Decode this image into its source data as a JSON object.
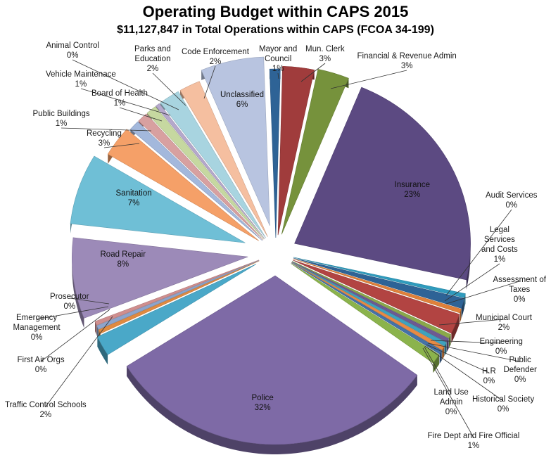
{
  "chart_data": {
    "type": "pie",
    "title": "Operating Budget within CAPS 2015",
    "subtitle": "$11,127,847 in Total Operations within CAPS (FCOA 34-199)",
    "slices": [
      {
        "name": "Mayor and Council",
        "value": 1,
        "pct": "1%",
        "color": "#2e6396"
      },
      {
        "name": "Mun. Clerk",
        "value": 3,
        "pct": "3%",
        "color": "#a03c3c"
      },
      {
        "name": "Financial & Revenue Admin",
        "value": 3,
        "pct": "3%",
        "color": "#76923c"
      },
      {
        "name": "Insurance",
        "value": 23,
        "pct": "23%",
        "color": "#5c4a82"
      },
      {
        "name": "Audit Services",
        "value": 0.4,
        "pct": "0%",
        "color": "#2f9bbd"
      },
      {
        "name": "Legal Services and Costs",
        "value": 1,
        "pct": "1%",
        "color": "#2e6396"
      },
      {
        "name": "Assessment of Taxes",
        "value": 0.4,
        "pct": "0%",
        "color": "#e0803a"
      },
      {
        "name": "Municipal Court",
        "value": 2,
        "pct": "2%",
        "color": "#b24442"
      },
      {
        "name": "Engineering",
        "value": 0.4,
        "pct": "0%",
        "color": "#8aa84a"
      },
      {
        "name": "Public Defender",
        "value": 0.4,
        "pct": "0%",
        "color": "#6d5a93"
      },
      {
        "name": "H.R",
        "value": 0.4,
        "pct": "0%",
        "color": "#3ea2bf"
      },
      {
        "name": "Historical Society",
        "value": 0.4,
        "pct": "0%",
        "color": "#e88a44"
      },
      {
        "name": "Land Use Admin",
        "value": 0.4,
        "pct": "0%",
        "color": "#4472a8"
      },
      {
        "name": "Fire Dept and Fire Official",
        "value": 1,
        "pct": "1%",
        "color": "#8bb34c"
      },
      {
        "name": "Police",
        "value": 32,
        "pct": "32%",
        "color": "#7e6aa6"
      },
      {
        "name": "Traffic Control Schools",
        "value": 2,
        "pct": "2%",
        "color": "#4aa8c8"
      },
      {
        "name": "First Air Orgs",
        "value": 0.4,
        "pct": "0%",
        "color": "#e08a40"
      },
      {
        "name": "Emergency Management",
        "value": 0.4,
        "pct": "0%",
        "color": "#8da4cc"
      },
      {
        "name": "Prosecutor",
        "value": 0.4,
        "pct": "0%",
        "color": "#cf8e8e"
      },
      {
        "name": "Road Repair",
        "value": 8,
        "pct": "8%",
        "color": "#9c8ab8"
      },
      {
        "name": "Sanitation",
        "value": 7,
        "pct": "7%",
        "color": "#6fbfd6"
      },
      {
        "name": "Recycling",
        "value": 3,
        "pct": "3%",
        "color": "#f5a068"
      },
      {
        "name": "Public Buildings",
        "value": 1,
        "pct": "1%",
        "color": "#a3b8dc"
      },
      {
        "name": "Board of Health",
        "value": 1,
        "pct": "1%",
        "color": "#d8a0a0"
      },
      {
        "name": "Vehicle Maintenace",
        "value": 1,
        "pct": "1%",
        "color": "#c6d8a0"
      },
      {
        "name": "Animal Control",
        "value": 0.4,
        "pct": "0%",
        "color": "#b5a8cc"
      },
      {
        "name": "Parks and Education",
        "value": 2,
        "pct": "2%",
        "color": "#a8d4e0"
      },
      {
        "name": "Code Enforcement",
        "value": 2,
        "pct": "2%",
        "color": "#f5bfa0"
      },
      {
        "name": "Unclassified",
        "value": 6,
        "pct": "6%",
        "color": "#b8c4e0"
      }
    ],
    "label_text": {
      "Mayor and Council": "Mayor and\nCouncil\n1%",
      "Mun. Clerk": "Mun. Clerk\n3%",
      "Financial & Revenue Admin": "Financial & Revenue Admin\n3%",
      "Insurance": "Insurance\n23%",
      "Audit Services": "Audit Services\n0%",
      "Legal Services and Costs": "Legal\nServices\nand Costs\n1%",
      "Assessment of Taxes": "Assessment of\nTaxes\n0%",
      "Municipal Court": "Municipal Court\n2%",
      "Engineering": "Engineering\n0%",
      "Public Defender": "Public\nDefender\n0%",
      "H.R": "H.R\n0%",
      "Historical Society": "Historical Society\n0%",
      "Land Use Admin": "Land Use\nAdmin\n0%",
      "Fire Dept and Fire Official": "Fire Dept  and Fire Official\n1%",
      "Police": "Police\n32%",
      "Traffic Control Schools": "Traffic Control Schools\n2%",
      "First Air Orgs": "First Air Orgs\n0%",
      "Emergency Management": "Emergency\nManagement\n0%",
      "Prosecutor": "Prosecutor\n0%",
      "Road Repair": "Road Repair\n8%",
      "Sanitation": "Sanitation\n7%",
      "Recycling": "Recycling\n3%",
      "Public Buildings": "Public Buildings\n1%",
      "Board of Health": "Board of Health\n1%",
      "Vehicle Maintenace": "Vehicle Maintenace\n1%",
      "Animal Control": "Animal Control\n0%",
      "Parks and Education": "Parks and\nEducation\n2%",
      "Code Enforcement": "Code Enforcement\n2%",
      "Unclassified": "Unclassified\n6%"
    },
    "legend": "none"
  }
}
